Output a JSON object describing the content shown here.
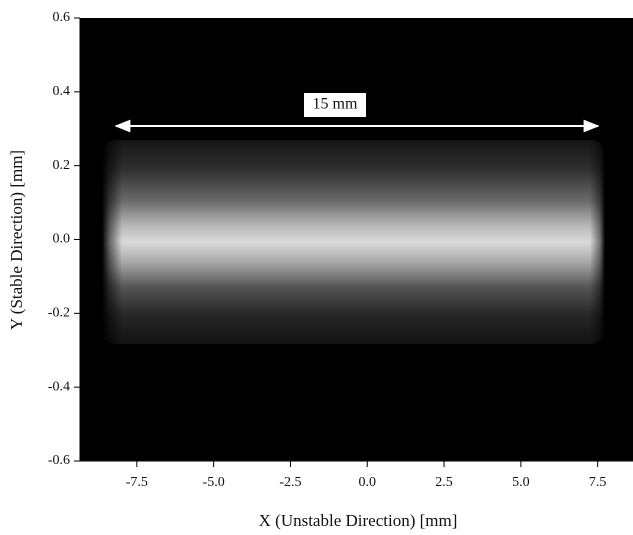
{
  "chart_data": {
    "type": "image",
    "xlabel": "X (Unstable Direction) [mm]",
    "ylabel": "Y (Stable Direction) [mm]",
    "annotation": "15 mm",
    "xlim": [
      -9.35,
      8.65
    ],
    "ylim": [
      -0.6,
      0.6
    ],
    "xticks": [
      -7.5,
      {
        "value": -5,
        "label": "-5.0"
      },
      -2.5,
      {
        "value": 0,
        "label": "0.0"
      },
      2.5,
      {
        "value": 5,
        "label": "5.0"
      },
      7.5
    ],
    "yticks": [
      -0.6,
      -0.4,
      -0.2,
      {
        "value": 0,
        "label": "0.0"
      },
      0.2,
      0.4,
      0.6
    ],
    "background": "#000000"
  }
}
